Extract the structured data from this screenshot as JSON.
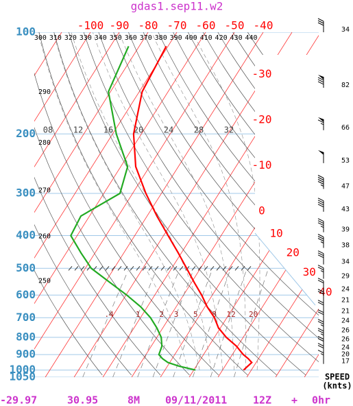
{
  "chart_data": {
    "type": "skewt",
    "title": "gdas1.sep11.w2",
    "ylim": [
      1050,
      100
    ],
    "yticks": [
      100,
      200,
      300,
      400,
      500,
      600,
      700,
      800,
      900,
      1000,
      1050
    ],
    "ylog": true,
    "isotherms": [
      -100,
      -90,
      -80,
      -70,
      -60,
      -50,
      -40,
      -30,
      -20,
      -10,
      0,
      10,
      20,
      30,
      40
    ],
    "isotherm_color": "#ff0000",
    "dry_adiabats": [
      250,
      260,
      270,
      280,
      290,
      300,
      310,
      320,
      330,
      340,
      350,
      360,
      370,
      380,
      390,
      400,
      410,
      420,
      430,
      440
    ],
    "moist_adiabats": [
      {
        "value": 8,
        "label": "08"
      },
      12,
      16,
      20,
      24,
      28,
      32
    ],
    "mixing_ratios": [
      {
        "value": 0.4,
        "label": ".4"
      },
      1,
      2,
      3,
      5,
      8,
      12,
      20
    ],
    "series": [
      {
        "color": "#ff0000",
        "pressures": [
          1000,
          950,
          925,
          900,
          850,
          800,
          750,
          700,
          650,
          600,
          550,
          500,
          450,
          400,
          350,
          300,
          250,
          200,
          150,
          110
        ],
        "values": [
          27.3,
          28.5,
          26.4,
          23.8,
          19.6,
          14.1,
          9.3,
          5.7,
          0.8,
          -3.7,
          -9.1,
          -14.8,
          -21.1,
          -28.4,
          -36.6,
          -45.4,
          -54.8,
          -62.7,
          -69,
          -70.6
        ]
      },
      {
        "color": "#22aa22",
        "pressures": [
          1000,
          975,
          950,
          925,
          900,
          850,
          800,
          750,
          700,
          650,
          600,
          550,
          500,
          450,
          400,
          350,
          300,
          250,
          200,
          150,
          110
        ],
        "values": [
          10.6,
          4.2,
          -0.6,
          -3.4,
          -5.5,
          -6.3,
          -8.5,
          -12.1,
          -16.5,
          -22.3,
          -29.7,
          -38.4,
          -47.9,
          -54.9,
          -62.2,
          -63,
          -54.4,
          -57.6,
          -68.7,
          -80.7,
          -83.7
        ]
      }
    ],
    "wind": {
      "label": "SPEED",
      "units": "(knts)",
      "pressures": [
        100,
        146,
        195,
        244,
        291,
        340,
        391,
        435,
        487,
        537,
        587,
        633,
        682,
        728,
        777,
        826,
        873,
        915,
        959
      ],
      "speeds": [
        34,
        82,
        66,
        53,
        47,
        43,
        39,
        38,
        34,
        29,
        24,
        21,
        21,
        24,
        26,
        26,
        24,
        20,
        17
      ]
    },
    "footer": [
      -29.97,
      30.95,
      "8M",
      "09/11/2011",
      "12Z",
      "+",
      "0hr"
    ]
  }
}
